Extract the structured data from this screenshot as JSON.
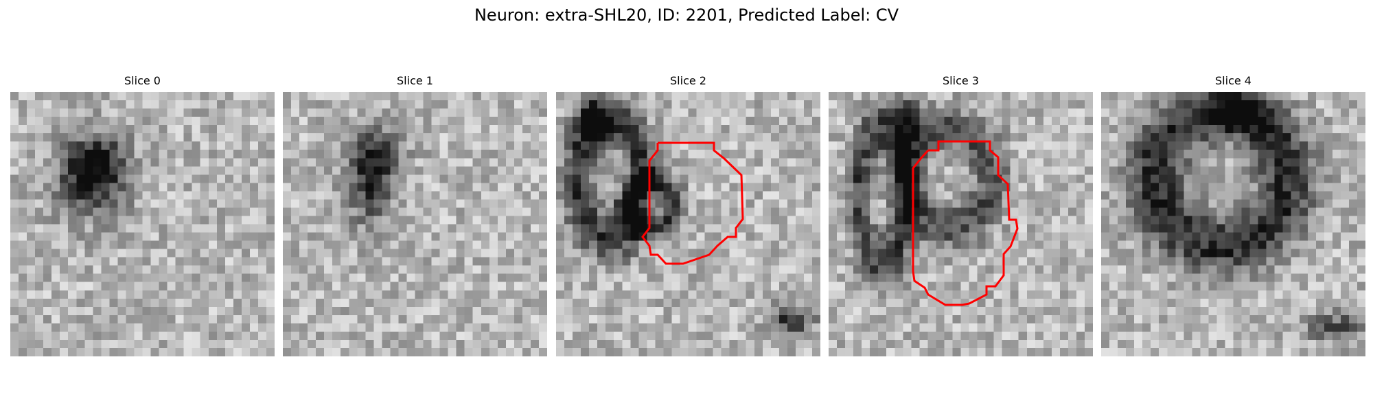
{
  "figure": {
    "title": "Neuron: extra-SHL20, ID: 2201, Predicted Label: CV"
  },
  "panels": [
    {
      "title": "Slice 0",
      "has_contour": false
    },
    {
      "title": "Slice 1",
      "has_contour": false
    },
    {
      "title": "Slice 2",
      "has_contour": true
    },
    {
      "title": "Slice 3",
      "has_contour": true
    },
    {
      "title": "Slice 4",
      "has_contour": false
    }
  ],
  "colors": {
    "background": "#ffffff",
    "contour": "#ff0000",
    "text": "#000000"
  },
  "colormap": "grayscale"
}
